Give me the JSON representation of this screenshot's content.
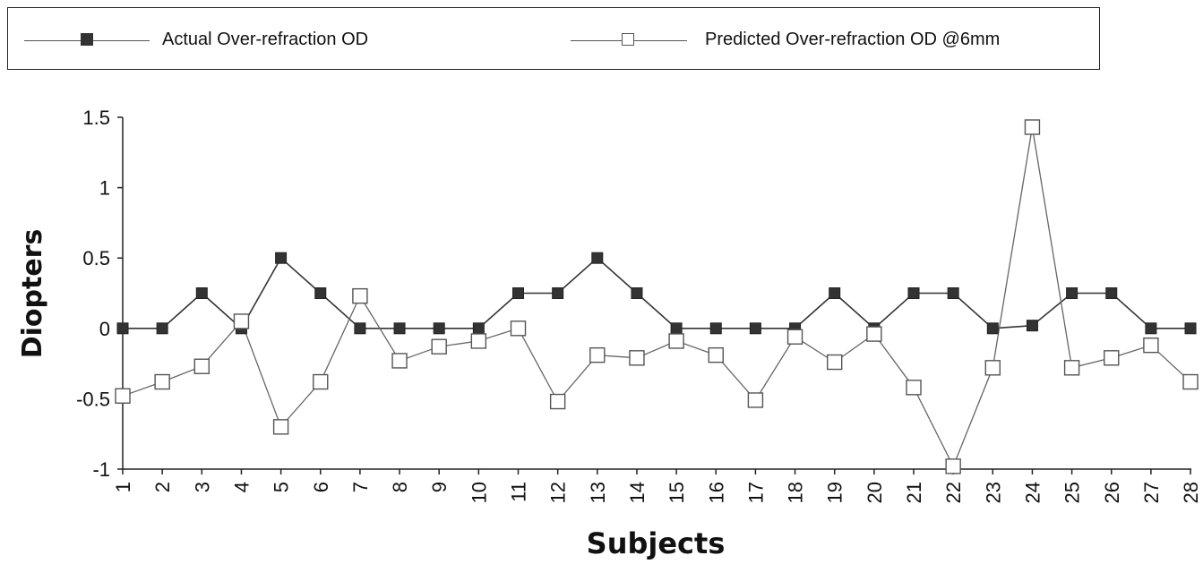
{
  "chart_data": {
    "type": "line",
    "xlabel": "Subjects",
    "ylabel": "Diopters",
    "ylim": [
      -1,
      1.5
    ],
    "yticks": [
      "1.5",
      "1",
      "0.5",
      "0",
      "-0.5",
      "-1"
    ],
    "ytick_values": [
      1.5,
      1,
      0.5,
      0,
      -0.5,
      -1
    ],
    "categories": [
      "1",
      "2",
      "3",
      "4",
      "5",
      "6",
      "7",
      "8",
      "9",
      "10",
      "11",
      "12",
      "13",
      "14",
      "15",
      "16",
      "17",
      "18",
      "19",
      "20",
      "21",
      "22",
      "23",
      "24",
      "25",
      "26",
      "27",
      "28"
    ],
    "legend_position": "top",
    "series": [
      {
        "name": "Actual Over-refraction OD",
        "marker": "filled-square",
        "color": "#333333",
        "values": [
          0,
          0,
          0.25,
          0,
          0.5,
          0.25,
          0,
          0,
          0,
          0,
          0.25,
          0.25,
          0.5,
          0.25,
          0,
          0,
          0,
          0,
          0.25,
          0,
          0.25,
          0.25,
          0,
          0.02,
          0.25,
          0.25,
          0,
          0
        ]
      },
      {
        "name": "Predicted Over-refraction OD @6mm",
        "marker": "open-square",
        "color": "#666666",
        "values": [
          -0.48,
          -0.38,
          -0.27,
          0.05,
          -0.7,
          -0.38,
          0.23,
          -0.23,
          -0.13,
          -0.09,
          0.0,
          -0.52,
          -0.19,
          -0.21,
          -0.09,
          -0.19,
          -0.51,
          -0.06,
          -0.24,
          -0.04,
          -0.42,
          -0.98,
          -0.28,
          1.43,
          -0.28,
          -0.21,
          -0.12,
          -0.38
        ]
      }
    ]
  }
}
